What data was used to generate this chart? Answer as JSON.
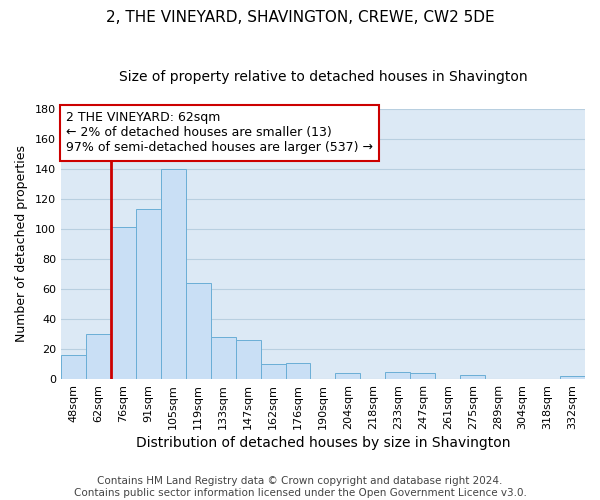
{
  "title": "2, THE VINEYARD, SHAVINGTON, CREWE, CW2 5DE",
  "subtitle": "Size of property relative to detached houses in Shavington",
  "xlabel": "Distribution of detached houses by size in Shavington",
  "ylabel": "Number of detached properties",
  "categories": [
    "48sqm",
    "62sqm",
    "76sqm",
    "91sqm",
    "105sqm",
    "119sqm",
    "133sqm",
    "147sqm",
    "162sqm",
    "176sqm",
    "190sqm",
    "204sqm",
    "218sqm",
    "233sqm",
    "247sqm",
    "261sqm",
    "275sqm",
    "289sqm",
    "304sqm",
    "318sqm",
    "332sqm"
  ],
  "values": [
    16,
    30,
    101,
    113,
    140,
    64,
    28,
    26,
    10,
    11,
    0,
    4,
    0,
    5,
    4,
    0,
    3,
    0,
    0,
    0,
    2
  ],
  "bar_color": "#c9dff5",
  "bar_edge_color": "#6aaed6",
  "highlight_bar_index": 1,
  "highlight_border_color": "#cc0000",
  "ylim": [
    0,
    180
  ],
  "yticks": [
    0,
    20,
    40,
    60,
    80,
    100,
    120,
    140,
    160,
    180
  ],
  "annotation_title": "2 THE VINEYARD: 62sqm",
  "annotation_line1": "← 2% of detached houses are smaller (13)",
  "annotation_line2": "97% of semi-detached houses are larger (537) →",
  "annotation_box_color": "#ffffff",
  "annotation_border_color": "#cc0000",
  "footer_line1": "Contains HM Land Registry data © Crown copyright and database right 2024.",
  "footer_line2": "Contains public sector information licensed under the Open Government Licence v3.0.",
  "background_color": "#ffffff",
  "axes_bg_color": "#dce9f5",
  "grid_color": "#b8cfe0",
  "title_fontsize": 11,
  "subtitle_fontsize": 10,
  "xlabel_fontsize": 10,
  "ylabel_fontsize": 9,
  "tick_fontsize": 8,
  "footer_fontsize": 7.5,
  "annotation_fontsize": 9
}
